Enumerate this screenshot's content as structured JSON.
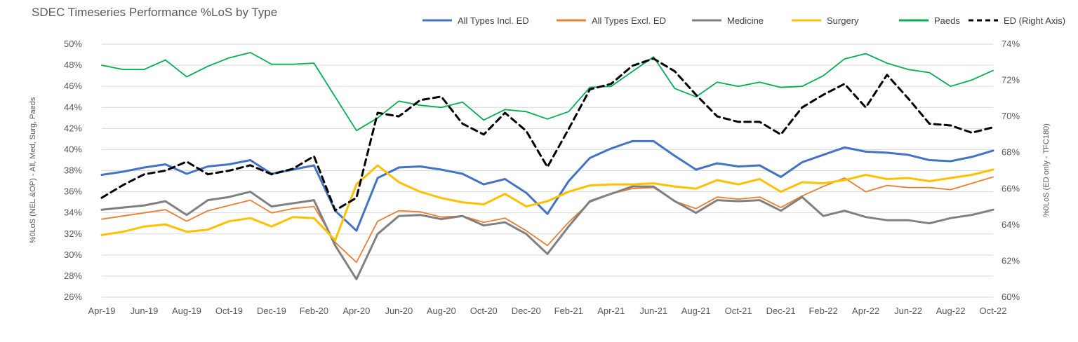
{
  "chart_data": {
    "type": "line",
    "title": "SDEC Timeseries Performance %LoS by Type",
    "ylabel_left": "%0LoS (NEL &OP) - All, Med, Surg, Paeds",
    "ylabel_right": "%0LoS (ED only - TFC180)",
    "ylim_left": [
      26,
      50
    ],
    "ylim_right": [
      60,
      74
    ],
    "left_ticks": [
      "26%",
      "28%",
      "30%",
      "32%",
      "34%",
      "36%",
      "38%",
      "40%",
      "42%",
      "44%",
      "46%",
      "48%",
      "50%"
    ],
    "right_ticks": [
      "60%",
      "62%",
      "64%",
      "66%",
      "68%",
      "70%",
      "72%",
      "74%"
    ],
    "x_tick_labels": [
      "Apr-19",
      "Jun-19",
      "Aug-19",
      "Oct-19",
      "Dec-19",
      "Feb-20",
      "Apr-20",
      "Jun-20",
      "Aug-20",
      "Oct-20",
      "Dec-20",
      "Feb-21",
      "Apr-21",
      "Jun-21",
      "Aug-21",
      "Oct-21",
      "Dec-21",
      "Feb-22",
      "Apr-22",
      "Jun-22",
      "Aug-22",
      "Oct-22"
    ],
    "categories": [
      "Apr-19",
      "May-19",
      "Jun-19",
      "Jul-19",
      "Aug-19",
      "Sep-19",
      "Oct-19",
      "Nov-19",
      "Dec-19",
      "Jan-20",
      "Feb-20",
      "Mar-20",
      "Apr-20",
      "May-20",
      "Jun-20",
      "Jul-20",
      "Aug-20",
      "Sep-20",
      "Oct-20",
      "Nov-20",
      "Dec-20",
      "Jan-21",
      "Feb-21",
      "Mar-21",
      "Apr-21",
      "May-21",
      "Jun-21",
      "Jul-21",
      "Aug-21",
      "Sep-21",
      "Oct-21",
      "Nov-21",
      "Dec-21",
      "Jan-22",
      "Feb-22",
      "Mar-22",
      "Apr-22",
      "May-22",
      "Jun-22",
      "Jul-22",
      "Aug-22",
      "Sep-22",
      "Oct-22"
    ],
    "series": [
      {
        "name": "All Types Incl. ED",
        "color": "#4472C4",
        "axis": "left",
        "dash": false,
        "values": [
          37.6,
          37.9,
          38.3,
          38.6,
          37.7,
          38.4,
          38.6,
          39.0,
          37.7,
          38.1,
          38.5,
          34.2,
          32.3,
          37.3,
          38.3,
          38.4,
          38.1,
          37.7,
          36.7,
          37.2,
          35.9,
          33.9,
          37.0,
          39.2,
          40.1,
          40.8,
          40.8,
          39.4,
          38.1,
          38.7,
          38.4,
          38.5,
          37.4,
          38.8,
          39.5,
          40.2,
          39.8,
          39.7,
          39.5,
          39.0,
          38.9,
          39.3,
          39.9
        ]
      },
      {
        "name": "All Types Excl. ED",
        "color": "#ED7D31",
        "axis": "left",
        "dash": false,
        "values": [
          33.4,
          33.7,
          34.0,
          34.3,
          33.2,
          34.2,
          34.7,
          35.2,
          34.0,
          34.4,
          34.6,
          31.2,
          29.3,
          33.2,
          34.2,
          34.1,
          33.6,
          33.7,
          33.1,
          33.5,
          32.3,
          30.9,
          33.1,
          35.0,
          35.8,
          36.3,
          36.4,
          35.1,
          34.4,
          35.5,
          35.3,
          35.5,
          34.5,
          35.6,
          36.5,
          37.3,
          36.0,
          36.6,
          36.4,
          36.4,
          36.2,
          36.8,
          37.4
        ]
      },
      {
        "name": "Medicine",
        "color": "#808080",
        "axis": "left",
        "dash": false,
        "values": [
          34.3,
          34.5,
          34.7,
          35.1,
          33.8,
          35.2,
          35.5,
          36.0,
          34.6,
          34.9,
          35.2,
          30.9,
          27.7,
          32.0,
          33.7,
          33.8,
          33.4,
          33.7,
          32.8,
          33.1,
          32.0,
          30.1,
          32.7,
          35.1,
          35.8,
          36.5,
          36.5,
          35.1,
          34.0,
          35.2,
          35.1,
          35.2,
          34.2,
          35.5,
          33.7,
          34.2,
          33.6,
          33.3,
          33.3,
          33.0,
          33.5,
          33.8,
          34.3
        ]
      },
      {
        "name": "Surgery",
        "color": "#FFC000",
        "axis": "left",
        "dash": false,
        "values": [
          31.9,
          32.2,
          32.7,
          32.9,
          32.2,
          32.4,
          33.2,
          33.5,
          32.7,
          33.6,
          33.5,
          31.4,
          36.7,
          38.5,
          36.9,
          36.0,
          35.4,
          35.0,
          34.8,
          35.8,
          34.6,
          35.1,
          36.0,
          36.6,
          36.7,
          36.7,
          36.8,
          36.5,
          36.3,
          37.1,
          36.7,
          37.2,
          36.0,
          36.9,
          36.8,
          37.1,
          37.6,
          37.2,
          37.3,
          37.0,
          37.3,
          37.6,
          38.1
        ]
      },
      {
        "name": "Paeds",
        "color": "#00B050",
        "axis": "left",
        "dash": false,
        "values": [
          48.0,
          47.6,
          47.6,
          48.5,
          46.9,
          47.9,
          48.7,
          49.2,
          48.1,
          48.1,
          48.2,
          45.0,
          41.8,
          43.0,
          44.6,
          44.2,
          44.0,
          44.5,
          42.8,
          43.8,
          43.6,
          42.9,
          43.6,
          45.9,
          46.0,
          47.4,
          48.8,
          45.8,
          45.0,
          46.4,
          46.0,
          46.4,
          45.9,
          46.0,
          47.0,
          48.6,
          49.1,
          48.2,
          47.6,
          47.3,
          46.0,
          46.6,
          47.5
        ]
      },
      {
        "name": "ED (Right Axis)",
        "color": "#000000",
        "axis": "right",
        "dash": true,
        "values": [
          65.5,
          66.2,
          66.8,
          67.0,
          67.5,
          66.8,
          67.0,
          67.3,
          66.8,
          67.1,
          67.8,
          64.8,
          65.5,
          70.2,
          70.0,
          70.9,
          71.1,
          69.6,
          69.0,
          70.2,
          69.2,
          67.2,
          69.3,
          71.5,
          71.8,
          72.8,
          73.2,
          72.5,
          71.2,
          70.0,
          69.7,
          69.7,
          69.0,
          70.5,
          71.2,
          71.8,
          70.5,
          72.3,
          71.0,
          69.6,
          69.5,
          69.1,
          69.4
        ]
      }
    ]
  }
}
